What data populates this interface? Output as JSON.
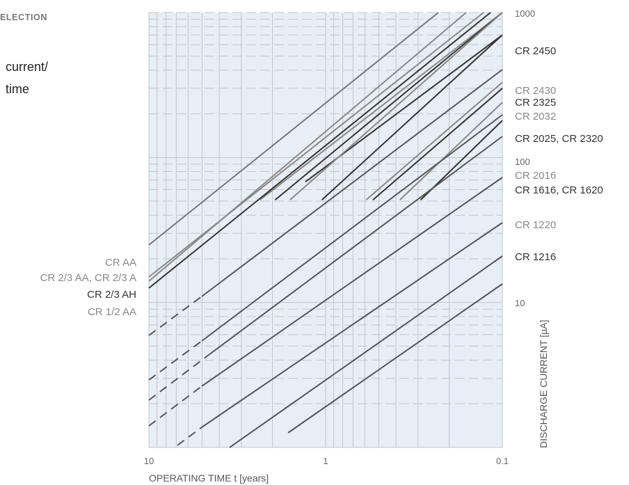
{
  "header": {
    "section_label": "ELECTION"
  },
  "side_text": {
    "line1": "current/",
    "line2": "time"
  },
  "chart_data": {
    "type": "line",
    "x_scale": "log",
    "y_scale": "log",
    "xlabel": "OPERATING TIME t [years]",
    "ylabel": "DISCHARGE CURRENT [µA]",
    "x_reversed": true,
    "xlim": [
      10,
      0.1
    ],
    "ylim": [
      1,
      1000
    ],
    "x_ticks": [
      {
        "value": 10,
        "label": "10"
      },
      {
        "value": 1,
        "label": "1"
      },
      {
        "value": 0.1,
        "label": "0.1"
      }
    ],
    "y_ticks": [
      {
        "value": 1000,
        "label": "1000"
      },
      {
        "value": 100,
        "label": "100"
      },
      {
        "value": 10,
        "label": "10"
      }
    ],
    "grid": true,
    "series_right": [
      {
        "name": "CR 2450",
        "color": "#333333",
        "points": [
          [
            1.3,
            68
          ],
          [
            0.1,
            700
          ]
        ],
        "dashed_until": null
      },
      {
        "name": "CR 2430",
        "color": "#888888",
        "points": [
          [
            2.35,
            51
          ],
          [
            0.1,
            1000
          ]
        ],
        "dashed_until": null
      },
      {
        "name": "CR 2325",
        "color": "#333333",
        "points": [
          [
            1.93,
            51
          ],
          [
            0.1,
            1000
          ]
        ],
        "dashed_until": null
      },
      {
        "name": "CR 2032",
        "color": "#888888",
        "points": [
          [
            1.59,
            51
          ],
          [
            0.1,
            1000
          ]
        ],
        "dashed_until": null
      },
      {
        "name": "CR 2025, CR 2320",
        "color": "#333333",
        "points": [
          [
            1.05,
            51
          ],
          [
            0.1,
            700
          ]
        ],
        "dashed_until": null
      },
      {
        "name": "CR 2016",
        "color": "#888888",
        "points": [
          [
            0.59,
            51
          ],
          [
            0.1,
            330
          ]
        ],
        "dashed_until": null
      },
      {
        "name": "CR 1616, CR 1620",
        "color": "#333333",
        "points": [
          [
            0.54,
            51
          ],
          [
            0.1,
            300
          ]
        ],
        "dashed_until": null
      },
      {
        "name": "CR 1220",
        "color": "#888888",
        "points": [
          [
            0.38,
            51
          ],
          [
            0.1,
            240
          ]
        ],
        "dashed_until": null
      },
      {
        "name": "CR 1216",
        "color": "#333333",
        "points": [
          [
            0.29,
            51
          ],
          [
            0.1,
            180
          ]
        ],
        "dashed_until": null
      }
    ],
    "series_left": [
      {
        "name": "CR AA",
        "color": "#888888"
      },
      {
        "name": "CR 2/3 AA, CR 2/3 A",
        "color": "#888888"
      },
      {
        "name": "CR 2/3 AH",
        "color": "#333333"
      },
      {
        "name": "CR 1/2 AA",
        "color": "#888888"
      }
    ]
  }
}
